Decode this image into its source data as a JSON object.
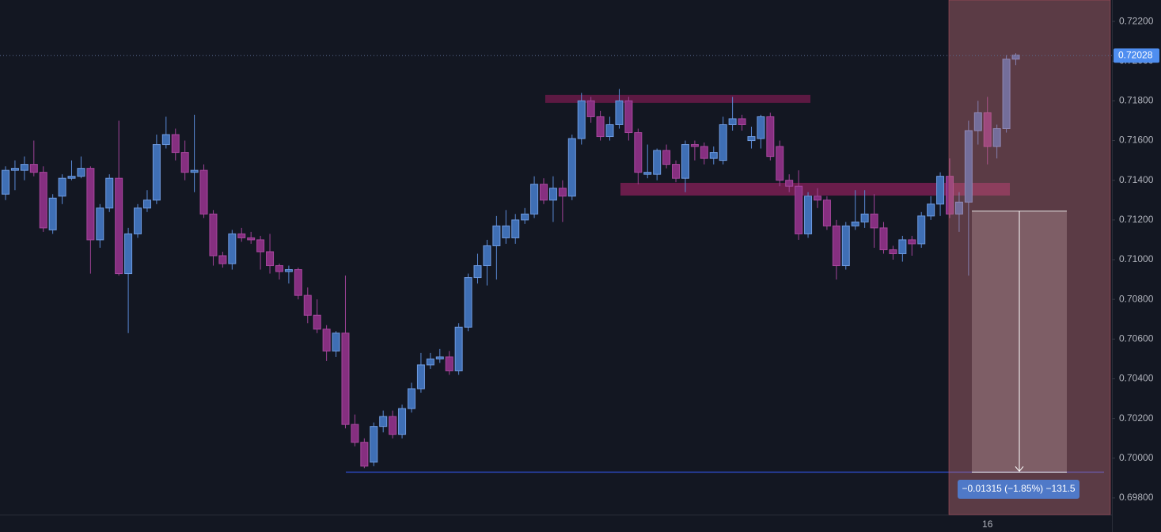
{
  "chart_data": {
    "type": "candlestick",
    "categories": [
      null,
      null,
      null,
      null,
      null,
      null,
      null,
      null,
      null,
      null,
      null,
      null,
      null,
      null,
      null,
      null,
      null,
      null,
      null,
      null,
      null,
      null,
      null,
      null,
      null,
      null,
      null,
      null,
      null,
      null,
      null,
      null,
      null,
      null,
      null,
      null,
      null,
      null,
      null,
      null,
      null,
      null,
      null,
      null,
      null,
      null,
      null,
      null,
      null,
      null,
      null,
      null,
      null,
      null,
      null,
      null,
      null,
      null,
      null,
      null,
      null,
      null,
      null,
      null,
      null,
      null,
      null,
      null,
      null,
      null,
      null,
      null,
      null,
      null,
      null,
      null,
      null,
      null,
      null,
      null,
      null,
      null,
      null,
      null,
      null,
      null,
      null,
      null,
      null,
      null,
      null,
      null,
      null,
      null,
      null,
      null,
      null,
      null,
      null,
      null,
      null,
      null,
      null,
      null,
      "16",
      null,
      null,
      null
    ],
    "open": [
      0.7133,
      0.7145,
      0.7145,
      0.7148,
      0.7144,
      0.7115,
      0.7132,
      0.7141,
      0.7142,
      0.7146,
      0.711,
      0.7126,
      0.7141,
      0.7093,
      0.7113,
      0.7126,
      0.713,
      0.7158,
      0.7163,
      0.7154,
      0.7144,
      0.7145,
      0.7123,
      0.7102,
      0.7098,
      0.7113,
      0.7111,
      0.711,
      0.7104,
      0.7097,
      0.7094,
      0.7095,
      0.7082,
      0.7072,
      0.7065,
      0.7054,
      0.7063,
      0.7017,
      0.7008,
      0.6998,
      0.7016,
      0.7021,
      0.7012,
      0.7025,
      0.7035,
      0.7047,
      0.705,
      0.7051,
      0.7044,
      0.7066,
      0.7091,
      0.7097,
      0.7107,
      0.7111,
      0.7111,
      0.712,
      0.7123,
      0.7138,
      0.713,
      0.7136,
      0.7132,
      0.7161,
      0.718,
      0.7172,
      0.7162,
      0.7168,
      0.718,
      0.7164,
      0.7143,
      0.7143,
      0.7155,
      0.7148,
      0.7141,
      0.7158,
      0.7157,
      0.7151,
      0.715,
      0.7168,
      0.7171,
      0.716,
      0.7161,
      0.7172,
      0.7157,
      0.714,
      0.7137,
      0.7113,
      0.7132,
      0.713,
      0.7117,
      0.7097,
      0.7117,
      0.7119,
      0.7123,
      0.7116,
      0.7105,
      0.7103,
      0.711,
      0.7108,
      0.7122,
      0.7128,
      0.7142,
      0.7123,
      0.7129,
      0.7165,
      0.7174,
      0.7157,
      0.7166,
      0.7201
    ],
    "high": [
      0.7147,
      0.715,
      0.7152,
      0.716,
      0.7147,
      0.7133,
      0.7143,
      0.715,
      0.7152,
      0.7147,
      0.7128,
      0.7143,
      0.717,
      0.7116,
      0.7128,
      0.7135,
      0.7163,
      0.7172,
      0.7166,
      0.716,
      0.7173,
      0.7148,
      0.7125,
      0.7104,
      0.7115,
      0.7116,
      0.7114,
      0.7112,
      0.7113,
      0.7098,
      0.7097,
      0.7096,
      0.7086,
      0.708,
      0.7067,
      0.7064,
      0.7092,
      0.7022,
      0.701,
      0.7018,
      0.7024,
      0.7024,
      0.7027,
      0.7038,
      0.7053,
      0.7053,
      0.7055,
      0.7054,
      0.7068,
      0.7093,
      0.7103,
      0.711,
      0.7122,
      0.7125,
      0.7123,
      0.7126,
      0.7142,
      0.7141,
      0.7142,
      0.714,
      0.7163,
      0.7184,
      0.7182,
      0.7175,
      0.7172,
      0.7186,
      0.7182,
      0.7166,
      0.7158,
      0.7156,
      0.7158,
      0.715,
      0.716,
      0.716,
      0.7159,
      0.7157,
      0.7172,
      0.7182,
      0.7173,
      0.7167,
      0.7173,
      0.7174,
      0.716,
      0.7143,
      0.7145,
      0.7134,
      0.7136,
      0.7132,
      0.712,
      0.7119,
      0.7135,
      0.7135,
      0.7133,
      0.7119,
      0.7107,
      0.7112,
      0.7112,
      0.7124,
      0.7132,
      0.7144,
      0.7151,
      0.7134,
      0.717,
      0.718,
      0.7182,
      0.7168,
      0.7203,
      0.7204
    ],
    "low": [
      0.713,
      0.7135,
      0.714,
      0.7142,
      0.7114,
      0.7113,
      0.7128,
      0.714,
      0.7141,
      0.7093,
      0.7106,
      0.7124,
      0.7092,
      0.7063,
      0.7111,
      0.7124,
      0.7128,
      0.7156,
      0.715,
      0.714,
      0.7134,
      0.7121,
      0.7097,
      0.7096,
      0.7095,
      0.7109,
      0.7108,
      0.7095,
      0.7093,
      0.709,
      0.7088,
      0.708,
      0.7068,
      0.7063,
      0.7049,
      0.7051,
      0.7015,
      0.7006,
      0.6995,
      0.6996,
      0.7013,
      0.701,
      0.701,
      0.7023,
      0.7033,
      0.7045,
      0.7048,
      0.7042,
      0.7042,
      0.7064,
      0.7088,
      0.7087,
      0.709,
      0.7108,
      0.7108,
      0.7118,
      0.7121,
      0.7128,
      0.7119,
      0.7119,
      0.713,
      0.7158,
      0.7169,
      0.716,
      0.716,
      0.7166,
      0.716,
      0.7138,
      0.7141,
      0.714,
      0.7146,
      0.7139,
      0.7134,
      0.715,
      0.7148,
      0.7148,
      0.7148,
      0.7165,
      0.7165,
      0.7156,
      0.7156,
      0.715,
      0.7137,
      0.7134,
      0.711,
      0.7111,
      0.7126,
      0.7115,
      0.709,
      0.7095,
      0.7115,
      0.7116,
      0.7106,
      0.7103,
      0.71,
      0.7099,
      0.7102,
      0.7106,
      0.712,
      0.7122,
      0.7121,
      0.7114,
      0.7092,
      0.7158,
      0.7148,
      0.7151,
      0.7164,
      0.7198
    ],
    "close": [
      0.7145,
      0.7146,
      0.7148,
      0.7144,
      0.7116,
      0.7131,
      0.7141,
      0.7142,
      0.7146,
      0.711,
      0.7126,
      0.7141,
      0.7093,
      0.7113,
      0.7126,
      0.713,
      0.7158,
      0.7163,
      0.7154,
      0.7144,
      0.7145,
      0.7123,
      0.7102,
      0.7098,
      0.7113,
      0.7111,
      0.711,
      0.7104,
      0.7097,
      0.7094,
      0.7095,
      0.7082,
      0.7072,
      0.7065,
      0.7054,
      0.7063,
      0.7017,
      0.7008,
      0.6996,
      0.7016,
      0.7021,
      0.7012,
      0.7025,
      0.7035,
      0.7047,
      0.705,
      0.7051,
      0.7044,
      0.7066,
      0.7091,
      0.7097,
      0.7107,
      0.7117,
      0.7117,
      0.712,
      0.7123,
      0.7138,
      0.713,
      0.7136,
      0.7132,
      0.7161,
      0.718,
      0.7172,
      0.7162,
      0.7168,
      0.718,
      0.7164,
      0.7144,
      0.7144,
      0.7155,
      0.7148,
      0.7141,
      0.7158,
      0.7157,
      0.7151,
      0.7154,
      0.7168,
      0.7171,
      0.7168,
      0.7162,
      0.7172,
      0.7152,
      0.714,
      0.7137,
      0.7113,
      0.7132,
      0.713,
      0.7117,
      0.7097,
      0.7117,
      0.7119,
      0.7123,
      0.7116,
      0.7105,
      0.7103,
      0.711,
      0.7108,
      0.7122,
      0.7128,
      0.7142,
      0.7123,
      0.7129,
      0.7165,
      0.7174,
      0.7157,
      0.7166,
      0.7201,
      0.7203
    ],
    "up_color": "#3f6fb5",
    "down_color": "#862f80",
    "ylim": [
      0.69716,
      0.72308
    ],
    "yticks": [
      {
        "value": 0.722,
        "label": "0.72200"
      },
      {
        "value": 0.72,
        "label": "0.72000"
      },
      {
        "value": 0.718,
        "label": "0.71800"
      },
      {
        "value": 0.716,
        "label": "0.71600"
      },
      {
        "value": 0.714,
        "label": "0.71400"
      },
      {
        "value": 0.712,
        "label": "0.71200"
      },
      {
        "value": 0.71,
        "label": "0.71000"
      },
      {
        "value": 0.708,
        "label": "0.70800"
      },
      {
        "value": 0.706,
        "label": "0.70600"
      },
      {
        "value": 0.704,
        "label": "0.70400"
      },
      {
        "value": 0.702,
        "label": "0.70200"
      },
      {
        "value": 0.7,
        "label": "0.70000"
      },
      {
        "value": 0.698,
        "label": "0.69800"
      }
    ],
    "last_price": {
      "value": 0.72028,
      "label": "0.72028"
    },
    "zones": [
      {
        "top": 0.7183,
        "bottom": 0.7179
      },
      {
        "top": 0.71387,
        "bottom": 0.71323
      }
    ],
    "support": 0.6993,
    "measure": {
      "from": 0.71245,
      "to": 0.6993,
      "label": "−0.01315 (−1.85%) −131.5"
    }
  }
}
